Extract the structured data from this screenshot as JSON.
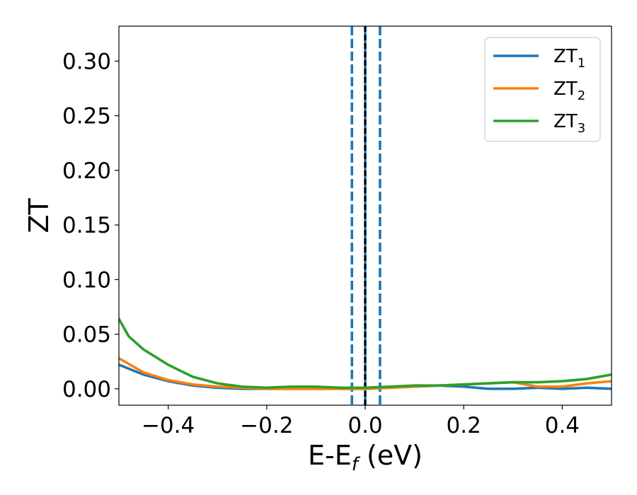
{
  "chart_data": {
    "type": "line",
    "title": "",
    "xlabel": {
      "main": "E-E",
      "sub": "f",
      "unit": " (eV)"
    },
    "ylabel": "ZT",
    "xlim": [
      -0.5,
      0.5
    ],
    "ylim": [
      -0.015,
      0.332
    ],
    "x_ticks": [
      -0.4,
      -0.2,
      0.0,
      0.2,
      0.4
    ],
    "x_tick_labels": [
      "−0.4",
      "−0.2",
      "0.0",
      "0.2",
      "0.4"
    ],
    "y_ticks": [
      0.0,
      0.05,
      0.1,
      0.15,
      0.2,
      0.25,
      0.3
    ],
    "y_tick_labels": [
      "0.00",
      "0.05",
      "0.10",
      "0.15",
      "0.20",
      "0.25",
      "0.30"
    ],
    "grid": false,
    "legend_position": "top-right",
    "vlines": [
      {
        "x": -0.027,
        "style": "dashed",
        "color": "#1f77b4"
      },
      {
        "x": 0.03,
        "style": "dashed",
        "color": "#1f77b4"
      },
      {
        "x": 0.0,
        "style": "solid",
        "color": "#1f77b4"
      },
      {
        "x": 0.0,
        "style": "dashed",
        "color": "#000000"
      }
    ],
    "series": [
      {
        "name": "ZT",
        "sub": "1",
        "color": "#1f77b4",
        "x": [
          -0.5,
          -0.45,
          -0.4,
          -0.35,
          -0.3,
          -0.25,
          -0.2,
          -0.15,
          -0.1,
          -0.05,
          0.0,
          0.05,
          0.1,
          0.15,
          0.2,
          0.25,
          0.3,
          0.35,
          0.4,
          0.45,
          0.5
        ],
        "y": [
          0.022,
          0.013,
          0.007,
          0.003,
          0.001,
          0.0,
          0.0,
          0.0,
          0.0,
          0.0,
          0.0,
          0.001,
          0.002,
          0.003,
          0.002,
          0.0,
          0.0,
          0.001,
          0.0,
          0.001,
          0.0
        ]
      },
      {
        "name": "ZT",
        "sub": "2",
        "color": "#ff7f0e",
        "x": [
          -0.5,
          -0.45,
          -0.4,
          -0.35,
          -0.3,
          -0.25,
          -0.2,
          -0.15,
          -0.1,
          -0.05,
          0.0,
          0.05,
          0.1,
          0.15,
          0.2,
          0.25,
          0.3,
          0.35,
          0.4,
          0.45,
          0.5
        ],
        "y": [
          0.028,
          0.015,
          0.008,
          0.004,
          0.002,
          0.001,
          0.0,
          0.0,
          0.0,
          0.0,
          0.0,
          0.001,
          0.002,
          0.003,
          0.004,
          0.005,
          0.006,
          0.002,
          0.002,
          0.005,
          0.007
        ]
      },
      {
        "name": "ZT",
        "sub": "3",
        "color": "#2ca02c",
        "x": [
          -0.5,
          -0.48,
          -0.45,
          -0.4,
          -0.35,
          -0.3,
          -0.25,
          -0.2,
          -0.15,
          -0.1,
          -0.05,
          0.0,
          0.05,
          0.1,
          0.15,
          0.2,
          0.25,
          0.3,
          0.35,
          0.4,
          0.45,
          0.5
        ],
        "y": [
          0.064,
          0.048,
          0.036,
          0.022,
          0.011,
          0.005,
          0.002,
          0.001,
          0.002,
          0.002,
          0.001,
          0.001,
          0.002,
          0.003,
          0.003,
          0.004,
          0.005,
          0.006,
          0.006,
          0.007,
          0.009,
          0.013
        ]
      }
    ]
  }
}
